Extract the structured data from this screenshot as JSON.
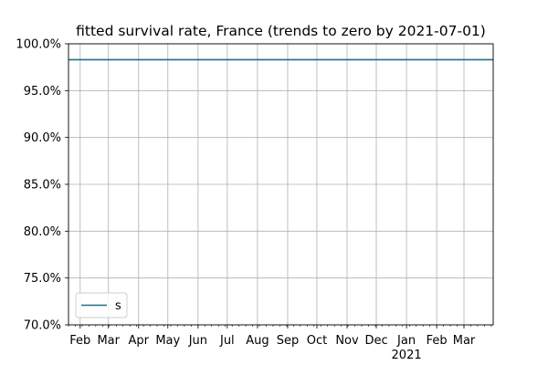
{
  "chart_data": {
    "type": "line",
    "title": "fitted survival rate, France (trends to zero by 2021-07-01)",
    "xlabel": "",
    "ylabel": "",
    "ylim": [
      70.0,
      100.0
    ],
    "yticks": [
      "70.0%",
      "75.0%",
      "80.0%",
      "85.0%",
      "90.0%",
      "95.0%",
      "100.0%"
    ],
    "xlim": [
      "2020-01-20",
      "2021-03-31"
    ],
    "xticks": [
      "Feb",
      "Mar",
      "Apr",
      "May",
      "Jun",
      "Jul",
      "Aug",
      "Sep",
      "Oct",
      "Nov",
      "Dec",
      "Jan",
      "Feb",
      "Mar"
    ],
    "xtick_year": "2021",
    "grid": true,
    "legend_position": "lower-left",
    "series": [
      {
        "name": "s",
        "color": "#1f6f8b",
        "x": [
          "2020-01-20",
          "2021-03-31"
        ],
        "y": [
          98.3,
          98.3
        ]
      }
    ]
  }
}
